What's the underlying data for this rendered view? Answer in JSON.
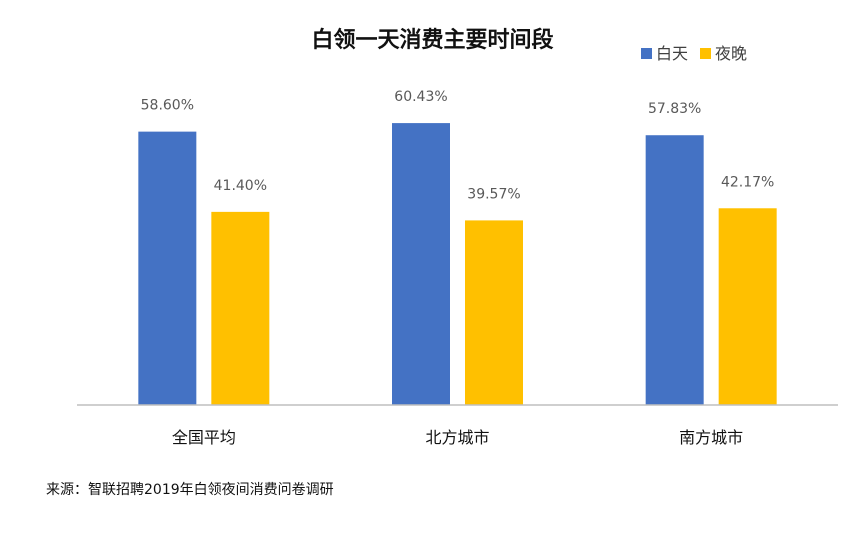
{
  "chart_data": {
    "type": "bar",
    "title": "白领一天消费主要时间段",
    "categories": [
      "全国平均",
      "北方城市",
      "南方城市"
    ],
    "series": [
      {
        "name": "白天",
        "values": [
          58.6,
          60.43,
          57.83
        ],
        "labels": [
          "58.60%",
          "60.43%",
          "57.83%"
        ],
        "color": "#4472C4"
      },
      {
        "name": "夜晚",
        "values": [
          41.4,
          39.57,
          42.17
        ],
        "labels": [
          "41.40%",
          "39.57%",
          "42.17%"
        ],
        "color": "#FFC000"
      }
    ],
    "xlabel": "",
    "ylabel": "",
    "ylim": [
      0,
      65
    ],
    "grid": false,
    "legend_position": "top-right"
  },
  "source_note": "来源：智联招聘2019年白领夜间消费问卷调研"
}
